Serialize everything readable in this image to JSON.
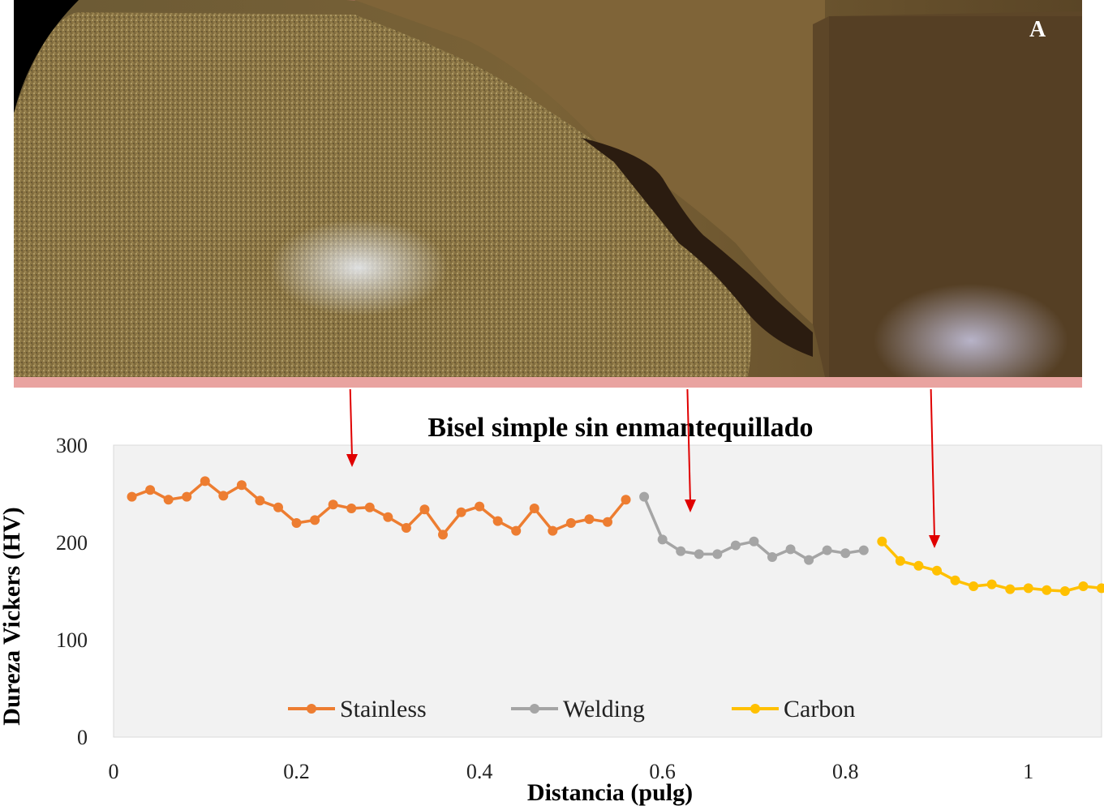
{
  "photo": {
    "label": "A",
    "description_icon": "weld-cross-section-photo"
  },
  "chart_data": {
    "type": "line",
    "title": "Bisel simple sin enmantequillado",
    "xlabel": "Distancia (pulg)",
    "ylabel": "Dureza  Vickers (HV)",
    "xlim": [
      0,
      1.08
    ],
    "ylim": [
      0,
      300
    ],
    "xticks": [
      "0",
      "0.2",
      "0.4",
      "0.6",
      "0.8",
      "1"
    ],
    "yticks": [
      "0",
      "100",
      "200",
      "300"
    ],
    "grid": false,
    "legend_position": "bottom-center",
    "series": [
      {
        "name": "Stainless",
        "color": "#ED7D31",
        "x": [
          0.02,
          0.04,
          0.06,
          0.08,
          0.1,
          0.12,
          0.14,
          0.16,
          0.18,
          0.2,
          0.22,
          0.24,
          0.26,
          0.28,
          0.3,
          0.32,
          0.34,
          0.36,
          0.38,
          0.4,
          0.42,
          0.44,
          0.46,
          0.48,
          0.5,
          0.52,
          0.54,
          0.56
        ],
        "values": [
          247,
          254,
          244,
          247,
          263,
          248,
          259,
          243,
          236,
          220,
          223,
          239,
          235,
          236,
          226,
          215,
          234,
          208,
          231,
          237,
          222,
          212,
          235,
          212,
          220,
          224,
          221,
          244
        ]
      },
      {
        "name": "Welding",
        "color": "#A5A5A5",
        "x": [
          0.58,
          0.6,
          0.62,
          0.64,
          0.66,
          0.68,
          0.7,
          0.72,
          0.74,
          0.76,
          0.78,
          0.8,
          0.82
        ],
        "values": [
          247,
          203,
          191,
          188,
          188,
          197,
          201,
          185,
          193,
          182,
          192,
          189,
          192
        ]
      },
      {
        "name": "Carbon",
        "color": "#FFC000",
        "x": [
          0.84,
          0.86,
          0.88,
          0.9,
          0.92,
          0.94,
          0.96,
          0.98,
          1.0,
          1.02,
          1.04,
          1.06,
          1.08
        ],
        "values": [
          201,
          181,
          176,
          171,
          161,
          155,
          157,
          152,
          153,
          151,
          150,
          155,
          153
        ]
      }
    ]
  },
  "arrows_color": "#E00000"
}
